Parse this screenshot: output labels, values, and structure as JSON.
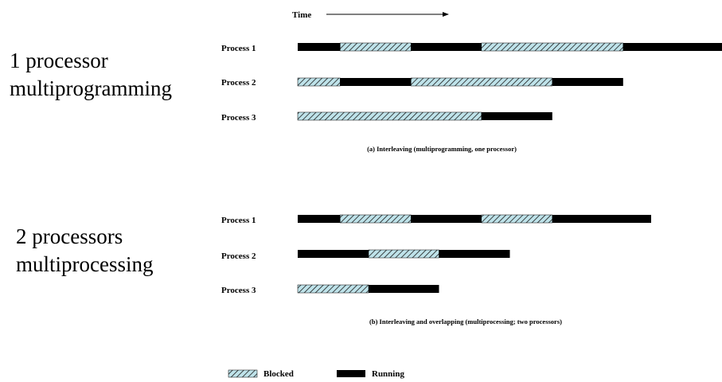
{
  "time_label": "Time",
  "left_labels": {
    "a": [
      "1 processor",
      "multiprogramming"
    ],
    "b": [
      "2 processors",
      "multiprocessing"
    ]
  },
  "legend": {
    "blocked": "Blocked",
    "running": "Running"
  },
  "chart_data": [
    {
      "type": "timeline",
      "caption": "(a)  Interleaving (multiprogramming, one processor)",
      "rows": [
        {
          "label": "Process 1",
          "segments": [
            {
              "start": 0,
              "end": 1,
              "state": "running"
            },
            {
              "start": 1,
              "end": 2.67,
              "state": "blocked"
            },
            {
              "start": 2.67,
              "end": 4.33,
              "state": "running"
            },
            {
              "start": 4.33,
              "end": 7.67,
              "state": "blocked"
            },
            {
              "start": 7.67,
              "end": 10,
              "state": "running"
            }
          ]
        },
        {
          "label": "Process 2",
          "segments": [
            {
              "start": 0,
              "end": 1,
              "state": "blocked"
            },
            {
              "start": 1,
              "end": 2.67,
              "state": "running"
            },
            {
              "start": 2.67,
              "end": 6,
              "state": "blocked"
            },
            {
              "start": 6,
              "end": 7.67,
              "state": "running"
            }
          ]
        },
        {
          "label": "Process 3",
          "segments": [
            {
              "start": 0,
              "end": 4.33,
              "state": "blocked"
            },
            {
              "start": 4.33,
              "end": 6,
              "state": "running"
            }
          ]
        }
      ]
    },
    {
      "type": "timeline",
      "caption": "(b)  Interleaving and overlapping (multiprocessing; two processors)",
      "rows": [
        {
          "label": "Process 1",
          "segments": [
            {
              "start": 0,
              "end": 1,
              "state": "running"
            },
            {
              "start": 1,
              "end": 2.67,
              "state": "blocked"
            },
            {
              "start": 2.67,
              "end": 4.33,
              "state": "running"
            },
            {
              "start": 4.33,
              "end": 6,
              "state": "blocked"
            },
            {
              "start": 6,
              "end": 8.33,
              "state": "running"
            }
          ]
        },
        {
          "label": "Process 2",
          "segments": [
            {
              "start": 0,
              "end": 1.67,
              "state": "running"
            },
            {
              "start": 1.67,
              "end": 3.33,
              "state": "blocked"
            },
            {
              "start": 3.33,
              "end": 5,
              "state": "running"
            }
          ]
        },
        {
          "label": "Process 3",
          "segments": [
            {
              "start": 0,
              "end": 1.67,
              "state": "blocked"
            },
            {
              "start": 1.67,
              "end": 3.33,
              "state": "running"
            }
          ]
        }
      ]
    }
  ],
  "colors": {
    "running": "#000000",
    "blocked_fill": "#bfe3ea",
    "blocked_hatch": "#1a1a1a",
    "text": "#000000"
  }
}
